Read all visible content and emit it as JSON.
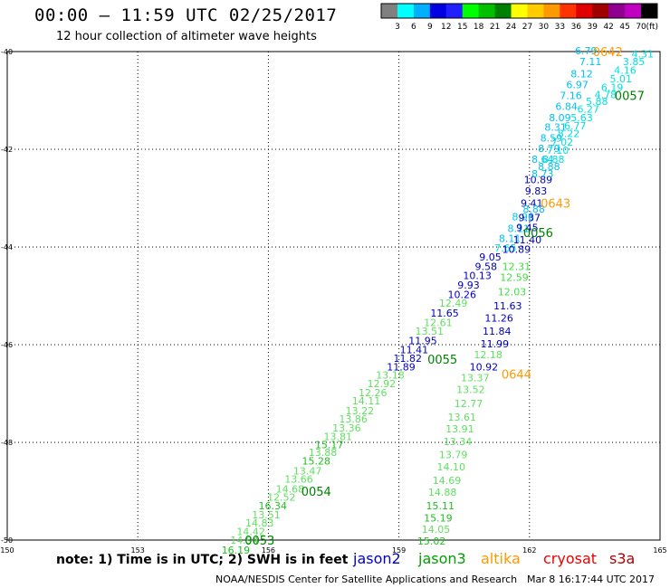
{
  "header": {
    "title": "00:00 – 11:59 UTC 02/25/2017",
    "subtitle": "12 hour collection of altimeter wave heights"
  },
  "colorbar": {
    "labels": [
      "3",
      "6",
      "9",
      "12",
      "15",
      "18",
      "21",
      "24",
      "27",
      "30",
      "33",
      "36",
      "39",
      "42",
      "45",
      "70"
    ],
    "unit": "(ft)",
    "colors": [
      "#808080",
      "#00ffff",
      "#00b0ff",
      "#0000e0",
      "#2020ff",
      "#00ff00",
      "#00c000",
      "#008000",
      "#ffff00",
      "#ffcc00",
      "#ff9900",
      "#ff3300",
      "#e00000",
      "#a00000",
      "#900090",
      "#c000c0",
      "#000000"
    ]
  },
  "footer": {
    "note": "note: 1) Time is in UTC; 2) SWH is in feet",
    "satellites": [
      {
        "name": "jason2",
        "color": "#0000cc"
      },
      {
        "name": "jason3",
        "color": "#00a000"
      },
      {
        "name": "altika",
        "color": "#ff9900"
      },
      {
        "name": "cryosat",
        "color": "#ee0000"
      },
      {
        "name": "s3a",
        "color": "#aa0000"
      }
    ],
    "credit": "NOAA/NESDIS Center for Satellite Applications and Research",
    "timestamp": "Mar  8 16:17:44 UTC 2017"
  },
  "chart_data": {
    "type": "scatter",
    "xlim": [
      150,
      165
    ],
    "ylim": [
      -50,
      -40
    ],
    "x_ticks": [
      150,
      153,
      156,
      159,
      162,
      165
    ],
    "x_tick_labels": [
      "150",
      "153",
      "156",
      "159",
      "162",
      "165"
    ],
    "y_ticks": [
      -40,
      -42,
      -44,
      -46,
      -48,
      -50
    ],
    "y_tick_labels": [
      "-40",
      "-42",
      "-44",
      "-46",
      "-48",
      "-50"
    ],
    "grid": true,
    "time_labels": [
      {
        "text": "0642",
        "x": 163.8,
        "y": -40.0,
        "color": "#ff9900"
      },
      {
        "text": "0057",
        "x": 164.3,
        "y": -40.9,
        "color": "#008000"
      },
      {
        "text": "0643",
        "x": 162.6,
        "y": -43.1,
        "color": "#ff9900"
      },
      {
        "text": "0056",
        "x": 162.2,
        "y": -43.7,
        "color": "#008000"
      },
      {
        "text": "0055",
        "x": 160.0,
        "y": -46.3,
        "color": "#008000"
      },
      {
        "text": "0644",
        "x": 161.7,
        "y": -46.6,
        "color": "#ff9900"
      },
      {
        "text": "0054",
        "x": 157.1,
        "y": -49.0,
        "color": "#008000"
      },
      {
        "text": "0053",
        "x": 155.8,
        "y": -50.0,
        "color": "#008000"
      }
    ],
    "points": [
      {
        "x": 163.3,
        "y": -39.98,
        "v": "6.79",
        "c": "#00c0f0"
      },
      {
        "x": 164.6,
        "y": -40.05,
        "v": "4.31",
        "c": "#00e0e0"
      },
      {
        "x": 163.4,
        "y": -40.2,
        "v": "7.11",
        "c": "#00c0f0"
      },
      {
        "x": 164.4,
        "y": -40.2,
        "v": "3.85",
        "c": "#00e0e0"
      },
      {
        "x": 164.2,
        "y": -40.38,
        "v": "4.16",
        "c": "#00e0e0"
      },
      {
        "x": 163.2,
        "y": -40.45,
        "v": "8.12",
        "c": "#00c0f0"
      },
      {
        "x": 164.1,
        "y": -40.56,
        "v": "5.01",
        "c": "#00e0e0"
      },
      {
        "x": 163.1,
        "y": -40.68,
        "v": "6.97",
        "c": "#00c0f0"
      },
      {
        "x": 163.9,
        "y": -40.73,
        "v": "6.19",
        "c": "#00e0e0"
      },
      {
        "x": 163.75,
        "y": -40.88,
        "v": "4.78",
        "c": "#00e0e0"
      },
      {
        "x": 162.95,
        "y": -40.9,
        "v": "7.16",
        "c": "#00c0f0"
      },
      {
        "x": 163.55,
        "y": -41.02,
        "v": "5.88",
        "c": "#00e0e0"
      },
      {
        "x": 162.85,
        "y": -41.12,
        "v": "6.84",
        "c": "#00c0f0"
      },
      {
        "x": 163.35,
        "y": -41.18,
        "v": "6.27",
        "c": "#00e0e0"
      },
      {
        "x": 162.7,
        "y": -41.35,
        "v": "8.09",
        "c": "#00c0f0"
      },
      {
        "x": 163.2,
        "y": -41.35,
        "v": "5.63",
        "c": "#00e0e0"
      },
      {
        "x": 163.05,
        "y": -41.52,
        "v": "6.77",
        "c": "#00e0e0"
      },
      {
        "x": 162.6,
        "y": -41.55,
        "v": "8.31",
        "c": "#00c0f0"
      },
      {
        "x": 162.9,
        "y": -41.68,
        "v": "8.22",
        "c": "#00e0e0"
      },
      {
        "x": 162.5,
        "y": -41.77,
        "v": "8.59",
        "c": "#00c0f0"
      },
      {
        "x": 162.75,
        "y": -41.85,
        "v": "7.02",
        "c": "#00e0e0"
      },
      {
        "x": 162.45,
        "y": -41.98,
        "v": "8.79",
        "c": "#00c0f0"
      },
      {
        "x": 162.65,
        "y": -42.02,
        "v": "7.10",
        "c": "#00e0e0"
      },
      {
        "x": 162.3,
        "y": -42.2,
        "v": "8.64",
        "c": "#00c0f0"
      },
      {
        "x": 162.55,
        "y": -42.2,
        "v": "8.88",
        "c": "#00e0e0"
      },
      {
        "x": 162.45,
        "y": -42.35,
        "v": "8.88",
        "c": "#00c0f0"
      },
      {
        "x": 162.2,
        "y": -42.62,
        "v": "10.89",
        "c": "#0000c0"
      },
      {
        "x": 162.3,
        "y": -42.5,
        "v": "8.73",
        "c": "#00c0f0"
      },
      {
        "x": 162.15,
        "y": -42.85,
        "v": "9.83",
        "c": "#0000c0"
      },
      {
        "x": 162.05,
        "y": -43.1,
        "v": "9.41",
        "c": "#0000c0"
      },
      {
        "x": 162.1,
        "y": -43.22,
        "v": "8.88",
        "c": "#00c0f0"
      },
      {
        "x": 161.85,
        "y": -43.38,
        "v": "8.96",
        "c": "#00c0f0"
      },
      {
        "x": 162.0,
        "y": -43.4,
        "v": "9.37",
        "c": "#0000c0"
      },
      {
        "x": 161.75,
        "y": -43.62,
        "v": "8.11",
        "c": "#00c0f0"
      },
      {
        "x": 161.95,
        "y": -43.6,
        "v": "9.45",
        "c": "#0000c0"
      },
      {
        "x": 161.55,
        "y": -43.82,
        "v": "8.11",
        "c": "#00c0f0"
      },
      {
        "x": 161.95,
        "y": -43.85,
        "v": "11.40",
        "c": "#0000c0"
      },
      {
        "x": 161.45,
        "y": -44.02,
        "v": "7.65",
        "c": "#00e0e0"
      },
      {
        "x": 161.7,
        "y": -44.05,
        "v": "10.89",
        "c": "#0000c0"
      },
      {
        "x": 161.1,
        "y": -44.2,
        "v": "9.05",
        "c": "#0000c0"
      },
      {
        "x": 161.7,
        "y": -44.4,
        "v": "12.31",
        "c": "#40e040"
      },
      {
        "x": 161.0,
        "y": -44.4,
        "v": "9.58",
        "c": "#0000c0"
      },
      {
        "x": 160.8,
        "y": -44.58,
        "v": "10.13",
        "c": "#0000c0"
      },
      {
        "x": 161.65,
        "y": -44.62,
        "v": "12.59",
        "c": "#40e040"
      },
      {
        "x": 160.6,
        "y": -44.78,
        "v": "9.93",
        "c": "#0000c0"
      },
      {
        "x": 161.6,
        "y": -44.92,
        "v": "12.03",
        "c": "#40e040"
      },
      {
        "x": 160.45,
        "y": -44.97,
        "v": "10.26",
        "c": "#0000c0"
      },
      {
        "x": 160.25,
        "y": -45.15,
        "v": "12.49",
        "c": "#60e060"
      },
      {
        "x": 161.5,
        "y": -45.2,
        "v": "11.63",
        "c": "#0000c0"
      },
      {
        "x": 160.05,
        "y": -45.35,
        "v": "11.65",
        "c": "#0000c0"
      },
      {
        "x": 161.3,
        "y": -45.45,
        "v": "11.26",
        "c": "#0000c0"
      },
      {
        "x": 159.9,
        "y": -45.55,
        "v": "12.61",
        "c": "#60e060"
      },
      {
        "x": 159.7,
        "y": -45.72,
        "v": "13.51",
        "c": "#60e060"
      },
      {
        "x": 161.25,
        "y": -45.72,
        "v": "11.84",
        "c": "#0000c0"
      },
      {
        "x": 159.55,
        "y": -45.92,
        "v": "11.95",
        "c": "#0000c0"
      },
      {
        "x": 161.2,
        "y": -45.98,
        "v": "11.99",
        "c": "#0000c0"
      },
      {
        "x": 159.35,
        "y": -46.1,
        "v": "11.41",
        "c": "#0000c0"
      },
      {
        "x": 161.05,
        "y": -46.2,
        "v": "12.18",
        "c": "#60e060"
      },
      {
        "x": 159.2,
        "y": -46.28,
        "v": "11.82",
        "c": "#0000c0"
      },
      {
        "x": 159.05,
        "y": -46.45,
        "v": "11.89",
        "c": "#0000c0"
      },
      {
        "x": 160.95,
        "y": -46.45,
        "v": "10.92",
        "c": "#0000c0"
      },
      {
        "x": 158.8,
        "y": -46.62,
        "v": "13.18",
        "c": "#60e060"
      },
      {
        "x": 160.75,
        "y": -46.68,
        "v": "13.37",
        "c": "#60e060"
      },
      {
        "x": 158.6,
        "y": -46.8,
        "v": "12.92",
        "c": "#60e060"
      },
      {
        "x": 160.65,
        "y": -46.92,
        "v": "13.52",
        "c": "#60e060"
      },
      {
        "x": 158.4,
        "y": -46.98,
        "v": "12.26",
        "c": "#60e060"
      },
      {
        "x": 158.25,
        "y": -47.15,
        "v": "14.11",
        "c": "#60e060"
      },
      {
        "x": 160.6,
        "y": -47.2,
        "v": "12.77",
        "c": "#60e060"
      },
      {
        "x": 158.1,
        "y": -47.35,
        "v": "13.22",
        "c": "#60e060"
      },
      {
        "x": 160.45,
        "y": -47.48,
        "v": "13.61",
        "c": "#60e060"
      },
      {
        "x": 157.95,
        "y": -47.52,
        "v": "13.86",
        "c": "#60e060"
      },
      {
        "x": 157.8,
        "y": -47.7,
        "v": "13.36",
        "c": "#60e060"
      },
      {
        "x": 160.4,
        "y": -47.72,
        "v": "13.91",
        "c": "#60e060"
      },
      {
        "x": 157.6,
        "y": -47.88,
        "v": "13.81",
        "c": "#60e060"
      },
      {
        "x": 160.35,
        "y": -47.98,
        "v": "13.34",
        "c": "#60e060"
      },
      {
        "x": 157.4,
        "y": -48.05,
        "v": "15.17",
        "c": "#20c020"
      },
      {
        "x": 157.25,
        "y": -48.2,
        "v": "13.88",
        "c": "#60e060"
      },
      {
        "x": 160.25,
        "y": -48.25,
        "v": "13.79",
        "c": "#60e060"
      },
      {
        "x": 157.1,
        "y": -48.38,
        "v": "15.28",
        "c": "#20c020"
      },
      {
        "x": 160.2,
        "y": -48.5,
        "v": "14.10",
        "c": "#60e060"
      },
      {
        "x": 156.9,
        "y": -48.58,
        "v": "13.47",
        "c": "#60e060"
      },
      {
        "x": 156.7,
        "y": -48.75,
        "v": "13.66",
        "c": "#60e060"
      },
      {
        "x": 160.1,
        "y": -48.78,
        "v": "14.69",
        "c": "#60e060"
      },
      {
        "x": 156.5,
        "y": -48.95,
        "v": "14.68",
        "c": "#60e060"
      },
      {
        "x": 160.0,
        "y": -49.02,
        "v": "14.88",
        "c": "#60e060"
      },
      {
        "x": 156.3,
        "y": -49.12,
        "v": "12.52",
        "c": "#60e060"
      },
      {
        "x": 156.1,
        "y": -49.3,
        "v": "16.34",
        "c": "#20c020"
      },
      {
        "x": 159.95,
        "y": -49.3,
        "v": "15.11",
        "c": "#20c020"
      },
      {
        "x": 155.95,
        "y": -49.48,
        "v": "13.51",
        "c": "#60e060"
      },
      {
        "x": 159.9,
        "y": -49.55,
        "v": "15.19",
        "c": "#20c020"
      },
      {
        "x": 155.8,
        "y": -49.65,
        "v": "14.83",
        "c": "#60e060"
      },
      {
        "x": 159.85,
        "y": -49.78,
        "v": "14.05",
        "c": "#60e060"
      },
      {
        "x": 155.6,
        "y": -49.82,
        "v": "14.42",
        "c": "#60e060"
      },
      {
        "x": 155.45,
        "y": -50.0,
        "v": "14.94",
        "c": "#60e060"
      },
      {
        "x": 159.75,
        "y": -50.02,
        "v": "15.02",
        "c": "#20c020"
      },
      {
        "x": 155.25,
        "y": -50.2,
        "v": "16.19",
        "c": "#20c020"
      }
    ]
  }
}
